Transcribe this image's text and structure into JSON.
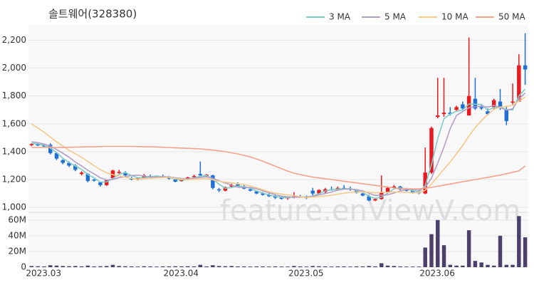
{
  "chart_data": {
    "type": "candlestick",
    "title": "솔트웨어(328380)",
    "watermark": "feature.enViewV.com",
    "categories": [
      "2023.03",
      null,
      null,
      null,
      null,
      null,
      null,
      null,
      null,
      null,
      null,
      null,
      null,
      null,
      null,
      null,
      null,
      null,
      null,
      null,
      null,
      null,
      "2023.04",
      null,
      null,
      null,
      null,
      null,
      null,
      null,
      null,
      null,
      null,
      null,
      null,
      null,
      null,
      null,
      null,
      null,
      null,
      null,
      "2023.05",
      null,
      null,
      null,
      null,
      null,
      null,
      null,
      null,
      null,
      null,
      null,
      null,
      null,
      null,
      null,
      null,
      null,
      null,
      null,
      null,
      "2023.06",
      null,
      null,
      null,
      null,
      null,
      null,
      null,
      null,
      null,
      null,
      null,
      null,
      null,
      null,
      null,
      null
    ],
    "open": [
      1450,
      1455,
      1445,
      1450,
      1390,
      1340,
      1320,
      1300,
      1240,
      1240,
      1200,
      1180,
      1160,
      1210,
      1250,
      1250,
      1210,
      1200,
      1210,
      1225,
      1220,
      1225,
      1215,
      1200,
      1190,
      1200,
      1220,
      1240,
      1225,
      1230,
      1130,
      1120,
      1150,
      1165,
      1150,
      1130,
      1115,
      1100,
      1090,
      1080,
      1070,
      1065,
      1075,
      1080,
      1075,
      1120,
      1100,
      1110,
      1130,
      1125,
      1140,
      1135,
      1120,
      1100,
      1080,
      1050,
      1060,
      1110,
      1140,
      1150,
      1130,
      1120,
      1110,
      1100,
      1250,
      1650,
      1670,
      1680,
      1700,
      1740,
      1660,
      1780,
      1720,
      1690,
      1720,
      1760,
      1700,
      1760,
      1760,
      2020
    ],
    "high": [
      1460,
      1460,
      1455,
      1460,
      1395,
      1345,
      1330,
      1310,
      1260,
      1245,
      1205,
      1185,
      1200,
      1270,
      1270,
      1260,
      1220,
      1215,
      1240,
      1235,
      1230,
      1235,
      1225,
      1210,
      1210,
      1220,
      1235,
      1330,
      1240,
      1235,
      1140,
      1150,
      1170,
      1180,
      1160,
      1140,
      1120,
      1110,
      1100,
      1090,
      1080,
      1080,
      1110,
      1090,
      1085,
      1140,
      1130,
      1140,
      1150,
      1150,
      1160,
      1150,
      1130,
      1110,
      1090,
      1070,
      1230,
      1150,
      1160,
      1155,
      1140,
      1130,
      1120,
      1430,
      1580,
      1930,
      1930,
      1720,
      1730,
      1760,
      2220,
      1930,
      1740,
      1710,
      1780,
      1850,
      1730,
      1890,
      2100,
      2250
    ],
    "low": [
      1440,
      1440,
      1435,
      1380,
      1340,
      1310,
      1290,
      1260,
      1230,
      1180,
      1185,
      1150,
      1155,
      1205,
      1240,
      1220,
      1195,
      1195,
      1205,
      1210,
      1215,
      1210,
      1200,
      1180,
      1185,
      1195,
      1210,
      1220,
      1215,
      1130,
      1110,
      1115,
      1145,
      1150,
      1130,
      1115,
      1095,
      1085,
      1075,
      1060,
      1055,
      1055,
      1065,
      1070,
      1060,
      1075,
      1095,
      1100,
      1120,
      1120,
      1130,
      1120,
      1100,
      1080,
      1045,
      1045,
      1055,
      1100,
      1130,
      1125,
      1115,
      1100,
      1095,
      1095,
      1240,
      1640,
      1650,
      1660,
      1690,
      1700,
      1660,
      1700,
      1700,
      1660,
      1700,
      1700,
      1590,
      1740,
      1760,
      1880
    ],
    "close": [
      1455,
      1445,
      1440,
      1390,
      1350,
      1320,
      1300,
      1270,
      1250,
      1190,
      1195,
      1160,
      1195,
      1265,
      1255,
      1230,
      1200,
      1210,
      1230,
      1220,
      1225,
      1215,
      1210,
      1185,
      1200,
      1215,
      1225,
      1230,
      1235,
      1140,
      1125,
      1145,
      1160,
      1155,
      1135,
      1120,
      1100,
      1090,
      1080,
      1070,
      1065,
      1075,
      1080,
      1075,
      1070,
      1100,
      1125,
      1130,
      1125,
      1140,
      1135,
      1130,
      1105,
      1085,
      1050,
      1060,
      1110,
      1140,
      1150,
      1130,
      1120,
      1110,
      1105,
      1250,
      1570,
      1660,
      1680,
      1670,
      1720,
      1710,
      1800,
      1710,
      1710,
      1670,
      1770,
      1720,
      1620,
      1760,
      2020,
      1990
    ],
    "volume": [
      1500000,
      1200000,
      1000000,
      2500000,
      2000000,
      1500000,
      1200000,
      1500000,
      1000000,
      2000000,
      1000000,
      1200000,
      1500000,
      3000000,
      1500000,
      1200000,
      1000000,
      800000,
      1200000,
      1000000,
      800000,
      1000000,
      1000000,
      1200000,
      1000000,
      1200000,
      1000000,
      3000000,
      1000000,
      2500000,
      1500000,
      1200000,
      1500000,
      1000000,
      1000000,
      800000,
      1000000,
      1000000,
      800000,
      1000000,
      800000,
      800000,
      1500000,
      1000000,
      800000,
      1500000,
      1200000,
      1000000,
      800000,
      1000000,
      1000000,
      800000,
      1000000,
      1000000,
      1500000,
      1000000,
      5000000,
      2000000,
      1500000,
      1000000,
      800000,
      800000,
      800000,
      25000000,
      42000000,
      60000000,
      28000000,
      3000000,
      2000000,
      2000000,
      47000000,
      8000000,
      6000000,
      3000000,
      2000000,
      40000000,
      3000000,
      3000000,
      65000000,
      38000000
    ],
    "up_color": "#e8191f",
    "down_color": "#1f6fd6",
    "volume_color": "#4b3f6b",
    "series": [
      {
        "name": "3 MA",
        "color": "#7ecdc4",
        "values": [
          1460,
          1455,
          1447,
          1425,
          1393,
          1353,
          1323,
          1297,
          1273,
          1237,
          1212,
          1182,
          1183,
          1207,
          1238,
          1250,
          1228,
          1213,
          1213,
          1220,
          1225,
          1220,
          1217,
          1203,
          1198,
          1200,
          1213,
          1223,
          1230,
          1202,
          1167,
          1137,
          1143,
          1153,
          1150,
          1137,
          1118,
          1103,
          1090,
          1080,
          1072,
          1070,
          1073,
          1077,
          1075,
          1082,
          1098,
          1118,
          1127,
          1132,
          1133,
          1135,
          1123,
          1107,
          1080,
          1065,
          1073,
          1103,
          1133,
          1140,
          1133,
          1120,
          1112,
          1155,
          1308,
          1493,
          1637,
          1670,
          1690,
          1700,
          1743,
          1740,
          1740,
          1697,
          1717,
          1720,
          1703,
          1700,
          1800,
          1850
        ]
      },
      {
        "name": "5 MA",
        "color": "#b39ec9",
        "values": [
          1470,
          1465,
          1455,
          1440,
          1416,
          1389,
          1360,
          1326,
          1298,
          1266,
          1241,
          1213,
          1198,
          1201,
          1214,
          1221,
          1229,
          1232,
          1225,
          1218,
          1217,
          1220,
          1220,
          1213,
          1207,
          1205,
          1211,
          1215,
          1221,
          1209,
          1191,
          1175,
          1161,
          1145,
          1144,
          1143,
          1134,
          1120,
          1105,
          1092,
          1081,
          1076,
          1074,
          1073,
          1073,
          1080,
          1090,
          1100,
          1110,
          1124,
          1131,
          1132,
          1127,
          1119,
          1101,
          1086,
          1088,
          1091,
          1103,
          1118,
          1130,
          1130,
          1123,
          1143,
          1211,
          1319,
          1433,
          1566,
          1660,
          1688,
          1716,
          1722,
          1728,
          1720,
          1732,
          1716,
          1698,
          1708,
          1778,
          1822
        ]
      },
      {
        "name": "10 MA",
        "color": "#f5c98a",
        "values": [
          1600,
          1570,
          1540,
          1505,
          1470,
          1440,
          1410,
          1385,
          1360,
          1330,
          1300,
          1272,
          1248,
          1235,
          1226,
          1217,
          1207,
          1203,
          1206,
          1209,
          1212,
          1215,
          1217,
          1209,
          1204,
          1200,
          1202,
          1204,
          1207,
          1198,
          1188,
          1181,
          1176,
          1170,
          1164,
          1154,
          1141,
          1127,
          1112,
          1102,
          1096,
          1090,
          1085,
          1077,
          1071,
          1074,
          1078,
          1082,
          1088,
          1095,
          1102,
          1108,
          1110,
          1111,
          1109,
          1105,
          1108,
          1109,
          1111,
          1110,
          1108,
          1106,
          1106,
          1123,
          1168,
          1221,
          1274,
          1327,
          1386,
          1444,
          1513,
          1573,
          1624,
          1666,
          1705,
          1720,
          1725,
          1734,
          1764,
          1792
        ]
      },
      {
        "name": "50 MA",
        "color": "#f4a28c",
        "values": [
          1430,
          1430,
          1430,
          1430,
          1430,
          1431,
          1432,
          1433,
          1434,
          1435,
          1436,
          1437,
          1438,
          1438,
          1438,
          1438,
          1438,
          1437,
          1436,
          1435,
          1434,
          1432,
          1430,
          1428,
          1426,
          1424,
          1422,
          1420,
          1416,
          1412,
          1406,
          1400,
          1392,
          1384,
          1374,
          1362,
          1348,
          1332,
          1314,
          1296,
          1278,
          1260,
          1246,
          1236,
          1226,
          1218,
          1212,
          1206,
          1200,
          1194,
          1188,
          1182,
          1176,
          1170,
          1164,
          1158,
          1152,
          1146,
          1140,
          1136,
          1134,
          1133,
          1134,
          1138,
          1144,
          1152,
          1160,
          1168,
          1176,
          1184,
          1192,
          1200,
          1208,
          1216,
          1224,
          1232,
          1242,
          1252,
          1262,
          1298
        ]
      }
    ],
    "ylim": [
      975,
      2310
    ],
    "yticks": [
      {
        "value": 1000,
        "label": "1,000"
      },
      {
        "value": 1200,
        "label": "1,200"
      },
      {
        "value": 1400,
        "label": "1,400"
      },
      {
        "value": 1600,
        "label": "1,600"
      },
      {
        "value": 1800,
        "label": "1,800"
      },
      {
        "value": 2000,
        "label": "2,000"
      },
      {
        "value": 2200,
        "label": "2,200"
      }
    ],
    "y2lim": [
      0,
      68000000
    ],
    "y2ticks": [
      0,
      {
        "value": 20000000,
        "label": "20M"
      },
      {
        "value": 40000000,
        "label": "40M"
      },
      {
        "value": 60000000,
        "label": "60M"
      }
    ],
    "grid": true
  }
}
